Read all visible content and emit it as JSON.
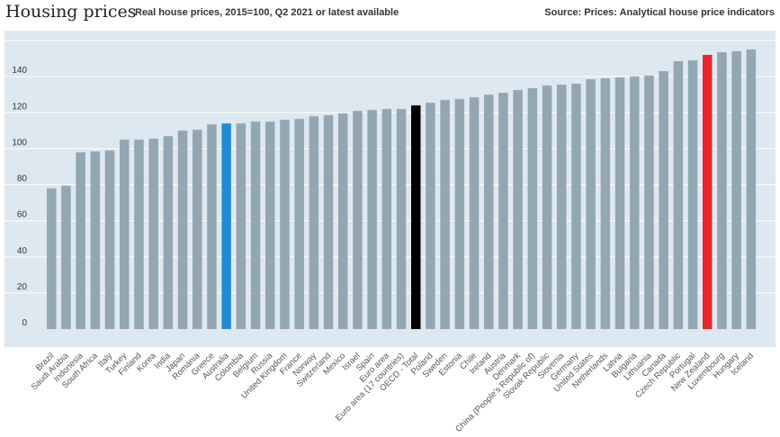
{
  "header": {
    "title": "Housing prices",
    "subtitle": "Real house prices, 2015=100, Q2 2021 or latest available",
    "source": "Source: Prices: Analytical house price indicators"
  },
  "colors": {
    "plot_bg": "#dde8f0",
    "bar": "#93a6b3",
    "bar_australia": "#1f8dd6",
    "bar_oecd": "#000000",
    "bar_new_zealand": "#e8262b",
    "label_australia": "#1f8dd6",
    "label_new_zealand": "#e8262b",
    "gridline": "#ffffff"
  },
  "chart_data": {
    "type": "bar",
    "title": "Housing prices",
    "subtitle": "Real house prices, 2015=100, Q2 2021 or latest available",
    "xlabel": "",
    "ylabel": "",
    "ylim": [
      0,
      160
    ],
    "yticks": [
      0,
      20,
      40,
      60,
      80,
      100,
      120,
      140
    ],
    "grid": true,
    "categories": [
      "Brazil",
      "Saudi Arabia",
      "Indonesia",
      "South Africa",
      "Italy",
      "Turkey",
      "Finland",
      "Korea",
      "India",
      "Japan",
      "Romania",
      "Greece",
      "Australia",
      "Colombia",
      "Belgium",
      "Russia",
      "United Kingdom",
      "France",
      "Norway",
      "Switzerland",
      "Mexico",
      "Israel",
      "Spain",
      "Euro area",
      "Euro area (17 countries)",
      "OECD - Total",
      "Poland",
      "Sweden",
      "Estonia",
      "Chile",
      "Ireland",
      "Austria",
      "Denmark",
      "China (People's Republic of)",
      "Slovak Republic",
      "Slovenia",
      "Germany",
      "United States",
      "Netherlands",
      "Latvia",
      "Bulgaria",
      "Lithuania",
      "Canada",
      "Czech Republic",
      "Portugal",
      "New Zealand",
      "Luxembourg",
      "Hungary",
      "Iceland"
    ],
    "values": [
      78,
      79.5,
      98,
      98.5,
      99,
      105,
      105,
      105.5,
      107,
      110,
      110.5,
      113.5,
      114,
      114,
      115,
      115,
      116,
      116.5,
      118,
      118.5,
      119.5,
      121,
      121.5,
      122,
      122,
      124,
      125.5,
      127,
      127.5,
      128.5,
      130,
      131,
      132.5,
      133.5,
      135,
      135.5,
      136,
      138.5,
      139,
      139.5,
      140,
      140.5,
      143,
      148.5,
      149,
      152,
      153.5,
      154,
      155
    ],
    "highlight": {
      "Australia": "bar_australia",
      "OECD - Total": "bar_oecd",
      "New Zealand": "bar_new_zealand"
    }
  }
}
